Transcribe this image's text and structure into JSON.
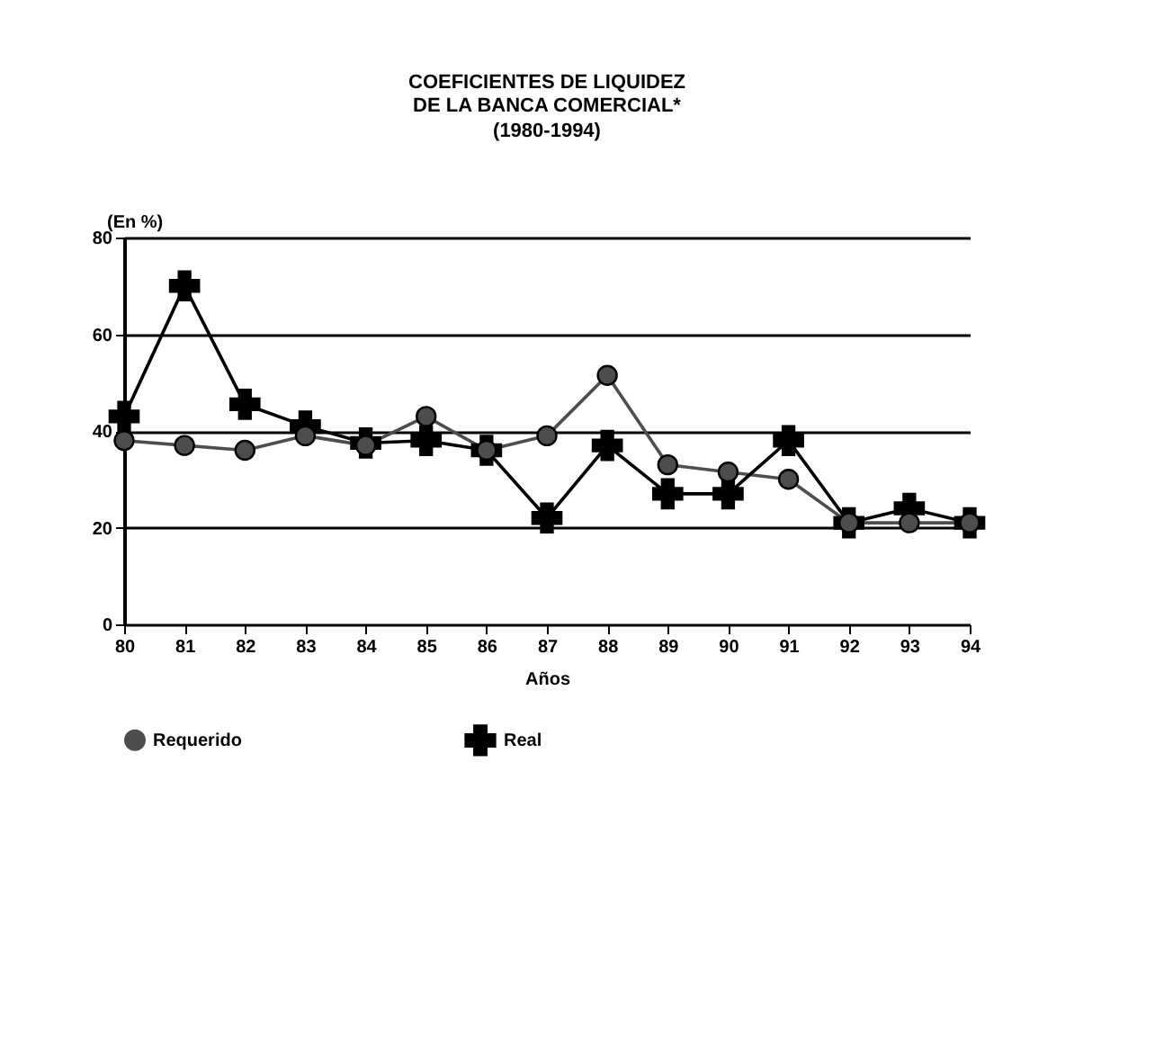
{
  "chart_data": {
    "type": "line",
    "title": "COEFICIENTES DE LIQUIDEZ\nDE LA BANCA COMERCIAL*",
    "subtitle": "(1980-1994)",
    "xlabel": "Años",
    "ylabel": "(En %)",
    "categories": [
      "80",
      "81",
      "82",
      "83",
      "84",
      "85",
      "86",
      "87",
      "88",
      "89",
      "90",
      "91",
      "92",
      "93",
      "94"
    ],
    "series": [
      {
        "name": "Requerido",
        "color": "#4d4d4d",
        "marker": "circle",
        "values": [
          38,
          37,
          36,
          39,
          37,
          43,
          36,
          39,
          51.5,
          33,
          31.5,
          30,
          21,
          21,
          21
        ]
      },
      {
        "name": "Real",
        "color": "#000000",
        "marker": "cross",
        "values": [
          43,
          70,
          45.5,
          41,
          37.5,
          38,
          36,
          22,
          37,
          27,
          27,
          38,
          21,
          24,
          21
        ]
      }
    ],
    "ylim": [
      0,
      80
    ],
    "yticks": [
      0,
      20,
      40,
      60,
      80
    ],
    "grid": "y",
    "legend": "bottom",
    "line_style": "solid"
  }
}
